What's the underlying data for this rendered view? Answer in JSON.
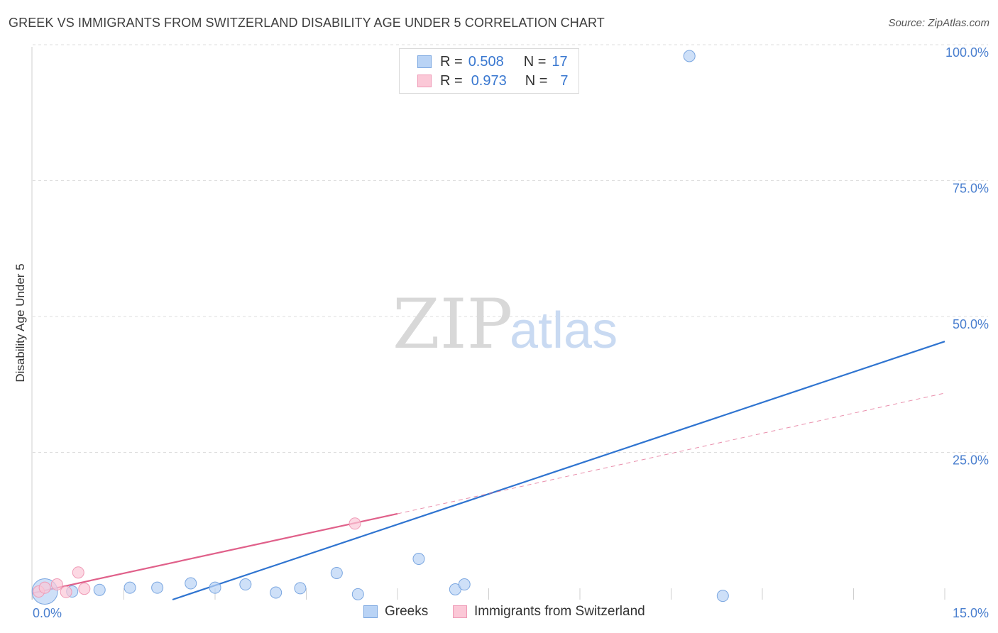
{
  "title": "GREEK VS IMMIGRANTS FROM SWITZERLAND DISABILITY AGE UNDER 5 CORRELATION CHART",
  "source": "Source: ZipAtlas.com",
  "watermark": {
    "zip": "ZIP",
    "atlas": "atlas"
  },
  "legend": {
    "greeks": {
      "r_label": "R =",
      "r_value": "0.508",
      "n_label": "N =",
      "n_value": "17"
    },
    "swiss": {
      "r_label": "R =",
      "r_value": "0.973",
      "n_label": "N =",
      "n_value": "7"
    }
  },
  "colors": {
    "greeks_fill": "#b9d3f5",
    "greeks_stroke": "#7aa6e0",
    "greeks_line": "#2f74d0",
    "swiss_fill": "#fbc8d7",
    "swiss_stroke": "#ef9ab6",
    "swiss_line": "#e0608a",
    "grid": "#dddddd",
    "tick_text": "#4a7fcf"
  },
  "chart_data": {
    "type": "scatter",
    "title": "GREEK VS IMMIGRANTS FROM SWITZERLAND DISABILITY AGE UNDER 5 CORRELATION CHART",
    "xlabel": "",
    "ylabel": "Disability Age Under 5",
    "xlim": [
      0,
      15
    ],
    "ylim": [
      0,
      100
    ],
    "x_tick_labels": [
      "0.0%",
      "15.0%"
    ],
    "y_ticks": [
      25,
      50,
      75,
      100
    ],
    "y_tick_labels": [
      "25.0%",
      "50.0%",
      "75.0%",
      "100.0%"
    ],
    "grid": true,
    "legend_position": "top-center",
    "series": [
      {
        "name": "Greeks",
        "points": [
          {
            "x": 0.2,
            "y": 1.5,
            "size": "large"
          },
          {
            "x": 0.65,
            "y": 1.5
          },
          {
            "x": 1.1,
            "y": 1.8
          },
          {
            "x": 1.6,
            "y": 2.2
          },
          {
            "x": 2.05,
            "y": 2.2
          },
          {
            "x": 2.6,
            "y": 3.0
          },
          {
            "x": 3.0,
            "y": 2.2
          },
          {
            "x": 3.5,
            "y": 2.8
          },
          {
            "x": 4.0,
            "y": 1.3
          },
          {
            "x": 4.4,
            "y": 2.1
          },
          {
            "x": 5.0,
            "y": 4.9
          },
          {
            "x": 5.35,
            "y": 1.0
          },
          {
            "x": 6.35,
            "y": 7.5
          },
          {
            "x": 6.95,
            "y": 1.9
          },
          {
            "x": 7.1,
            "y": 2.8
          },
          {
            "x": 10.8,
            "y": 100.0
          },
          {
            "x": 11.35,
            "y": 0.7
          }
        ],
        "trendline": {
          "x": [
            2.3,
            15.0
          ],
          "y": [
            0.0,
            47.5
          ],
          "style": "solid"
        }
      },
      {
        "name": "Immigrants from Switzerland",
        "points": [
          {
            "x": 0.1,
            "y": 1.5
          },
          {
            "x": 0.2,
            "y": 2.2
          },
          {
            "x": 0.4,
            "y": 2.8
          },
          {
            "x": 0.55,
            "y": 1.4
          },
          {
            "x": 0.75,
            "y": 5.0
          },
          {
            "x": 0.85,
            "y": 2.0
          },
          {
            "x": 5.3,
            "y": 14.0
          }
        ],
        "trendline": {
          "x": [
            0.0,
            6.0
          ],
          "y": [
            1.2,
            15.8
          ],
          "style": "solid",
          "extension": {
            "x": [
              6.0,
              15.0
            ],
            "y": [
              15.8,
              38.0
            ],
            "style": "dashed"
          }
        }
      }
    ]
  },
  "bottom_legend": {
    "greeks": "Greeks",
    "swiss": "Immigrants from Switzerland"
  }
}
